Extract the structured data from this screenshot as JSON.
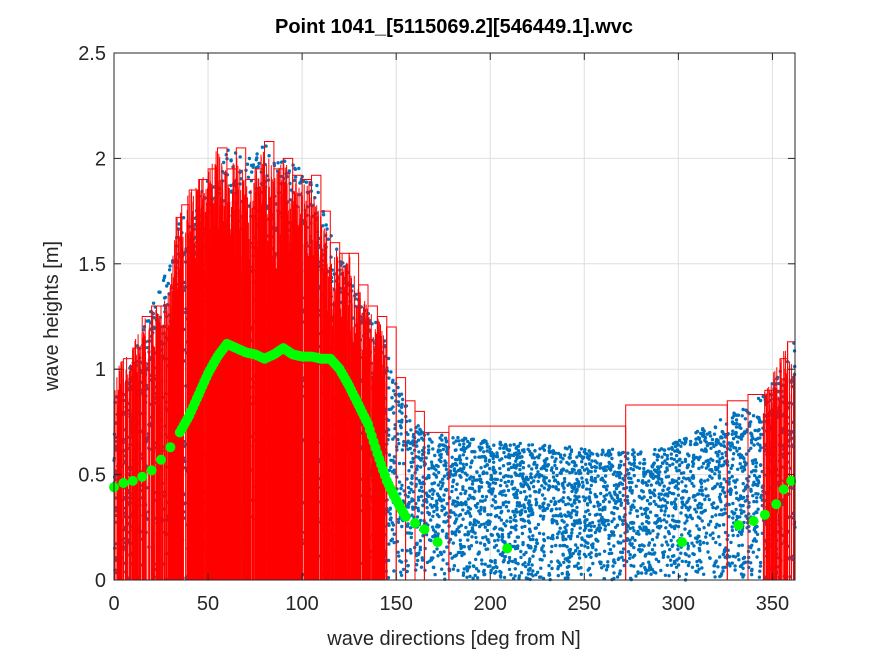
{
  "chart_data": {
    "type": "scatter",
    "title": "Point 1041_[5115069.2][546449.1].wvc",
    "xlabel": "wave directions [deg from N]",
    "ylabel": "wave heights [m]",
    "xlim": [
      0,
      362
    ],
    "ylim": [
      0,
      2.5
    ],
    "xticks": [
      "0",
      "50",
      "100",
      "150",
      "200",
      "250",
      "300",
      "350"
    ],
    "yticks": [
      "0",
      "0.5",
      "1",
      "1.5",
      "2",
      "2.5"
    ],
    "grid": true,
    "series": [
      {
        "style": "scatter",
        "color": "#0072BD",
        "envelope": {
          "direction": [
            0,
            10,
            20,
            30,
            35,
            45,
            55,
            60,
            70,
            80,
            90,
            100,
            110,
            120,
            130,
            140,
            150,
            160,
            165,
            180,
            200,
            230,
            260,
            290,
            320,
            335,
            345,
            355,
            362
          ],
          "upper": [
            0.85,
            1.05,
            1.3,
            1.55,
            1.72,
            1.85,
            1.95,
            2.05,
            2.0,
            2.08,
            2.0,
            1.95,
            1.85,
            1.55,
            1.35,
            1.25,
            0.95,
            0.75,
            0.7,
            0.68,
            0.66,
            0.64,
            0.62,
            0.62,
            0.75,
            0.82,
            0.88,
            1.0,
            1.15
          ]
        }
      },
      {
        "style": "stair",
        "color": "#FF0000",
        "x": [
          0,
          5,
          10,
          15,
          20,
          25,
          30,
          33,
          36,
          40,
          45,
          50,
          55,
          60,
          65,
          70,
          75,
          80,
          85,
          90,
          95,
          100,
          105,
          110,
          115,
          120,
          125,
          130,
          135,
          140,
          145,
          150,
          155,
          160,
          165,
          178,
          272,
          326,
          337,
          346,
          354,
          358,
          362
        ],
        "y": [
          1.0,
          1.05,
          1.1,
          1.25,
          1.3,
          1.3,
          1.4,
          1.72,
          1.78,
          1.85,
          1.9,
          1.95,
          2.05,
          1.95,
          2.05,
          1.9,
          1.95,
          2.08,
          1.95,
          2.0,
          1.92,
          1.9,
          1.92,
          1.75,
          1.6,
          1.55,
          1.55,
          1.4,
          1.3,
          1.25,
          1.2,
          0.96,
          0.85,
          0.8,
          0.7,
          0.73,
          0.83,
          0.85,
          0.88,
          0.9,
          1.05,
          1.13,
          1.0
        ]
      },
      {
        "style": "markers",
        "color": "#00FF00",
        "x": [
          0,
          5,
          10,
          15,
          20,
          25,
          30,
          35,
          40,
          45,
          50,
          55,
          60,
          65,
          70,
          75,
          80,
          85,
          90,
          95,
          100,
          105,
          110,
          115,
          120,
          125,
          130,
          135,
          140,
          145,
          150,
          155,
          160,
          165,
          172,
          209,
          302,
          332,
          340,
          346,
          352,
          356,
          360
        ],
        "y": [
          0.44,
          0.46,
          0.47,
          0.49,
          0.52,
          0.57,
          0.63,
          0.7,
          0.78,
          0.88,
          0.98,
          1.06,
          1.12,
          1.1,
          1.08,
          1.07,
          1.05,
          1.07,
          1.1,
          1.07,
          1.06,
          1.06,
          1.05,
          1.05,
          1.0,
          0.92,
          0.83,
          0.74,
          0.6,
          0.47,
          0.38,
          0.3,
          0.27,
          0.24,
          0.18,
          0.15,
          0.18,
          0.26,
          0.28,
          0.31,
          0.36,
          0.43,
          0.47
        ]
      }
    ]
  }
}
